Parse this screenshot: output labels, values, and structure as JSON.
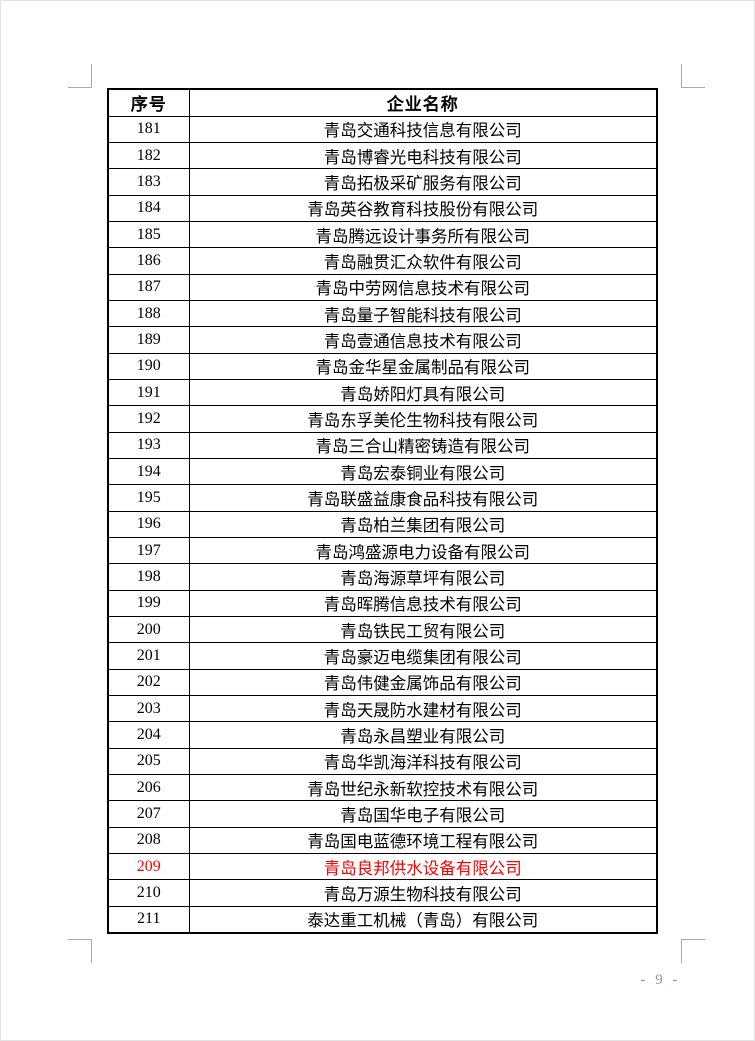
{
  "page": {
    "number_label": "- 9 -"
  },
  "colors": {
    "highlight": "#ff0000",
    "page_number": "#8b92a2",
    "crop_mark": "#a9a9a9"
  },
  "table": {
    "headers": {
      "index": "序号",
      "name": "企业名称"
    },
    "rows": [
      {
        "index": "181",
        "name": "青岛交通科技信息有限公司",
        "highlight": false
      },
      {
        "index": "182",
        "name": "青岛博睿光电科技有限公司",
        "highlight": false
      },
      {
        "index": "183",
        "name": "青岛拓极采矿服务有限公司",
        "highlight": false
      },
      {
        "index": "184",
        "name": "青岛英谷教育科技股份有限公司",
        "highlight": false
      },
      {
        "index": "185",
        "name": "青岛腾远设计事务所有限公司",
        "highlight": false
      },
      {
        "index": "186",
        "name": "青岛融贯汇众软件有限公司",
        "highlight": false
      },
      {
        "index": "187",
        "name": "青岛中劳网信息技术有限公司",
        "highlight": false
      },
      {
        "index": "188",
        "name": "青岛量子智能科技有限公司",
        "highlight": false
      },
      {
        "index": "189",
        "name": "青岛壹通信息技术有限公司",
        "highlight": false
      },
      {
        "index": "190",
        "name": "青岛金华星金属制品有限公司",
        "highlight": false
      },
      {
        "index": "191",
        "name": "青岛娇阳灯具有限公司",
        "highlight": false
      },
      {
        "index": "192",
        "name": "青岛东孚美伦生物科技有限公司",
        "highlight": false
      },
      {
        "index": "193",
        "name": "青岛三合山精密铸造有限公司",
        "highlight": false
      },
      {
        "index": "194",
        "name": "青岛宏泰铜业有限公司",
        "highlight": false
      },
      {
        "index": "195",
        "name": "青岛联盛益康食品科技有限公司",
        "highlight": false
      },
      {
        "index": "196",
        "name": "青岛柏兰集团有限公司",
        "highlight": false
      },
      {
        "index": "197",
        "name": "青岛鸿盛源电力设备有限公司",
        "highlight": false
      },
      {
        "index": "198",
        "name": "青岛海源草坪有限公司",
        "highlight": false
      },
      {
        "index": "199",
        "name": "青岛晖腾信息技术有限公司",
        "highlight": false
      },
      {
        "index": "200",
        "name": "青岛铁民工贸有限公司",
        "highlight": false
      },
      {
        "index": "201",
        "name": "青岛豪迈电缆集团有限公司",
        "highlight": false
      },
      {
        "index": "202",
        "name": "青岛伟健金属饰品有限公司",
        "highlight": false
      },
      {
        "index": "203",
        "name": "青岛天晟防水建材有限公司",
        "highlight": false
      },
      {
        "index": "204",
        "name": "青岛永昌塑业有限公司",
        "highlight": false
      },
      {
        "index": "205",
        "name": "青岛华凯海洋科技有限公司",
        "highlight": false
      },
      {
        "index": "206",
        "name": "青岛世纪永新软控技术有限公司",
        "highlight": false
      },
      {
        "index": "207",
        "name": "青岛国华电子有限公司",
        "highlight": false
      },
      {
        "index": "208",
        "name": "青岛国电蓝德环境工程有限公司",
        "highlight": false
      },
      {
        "index": "209",
        "name": "青岛良邦供水设备有限公司",
        "highlight": true
      },
      {
        "index": "210",
        "name": "青岛万源生物科技有限公司",
        "highlight": false
      },
      {
        "index": "211",
        "name": "泰达重工机械（青岛）有限公司",
        "highlight": false
      }
    ]
  }
}
